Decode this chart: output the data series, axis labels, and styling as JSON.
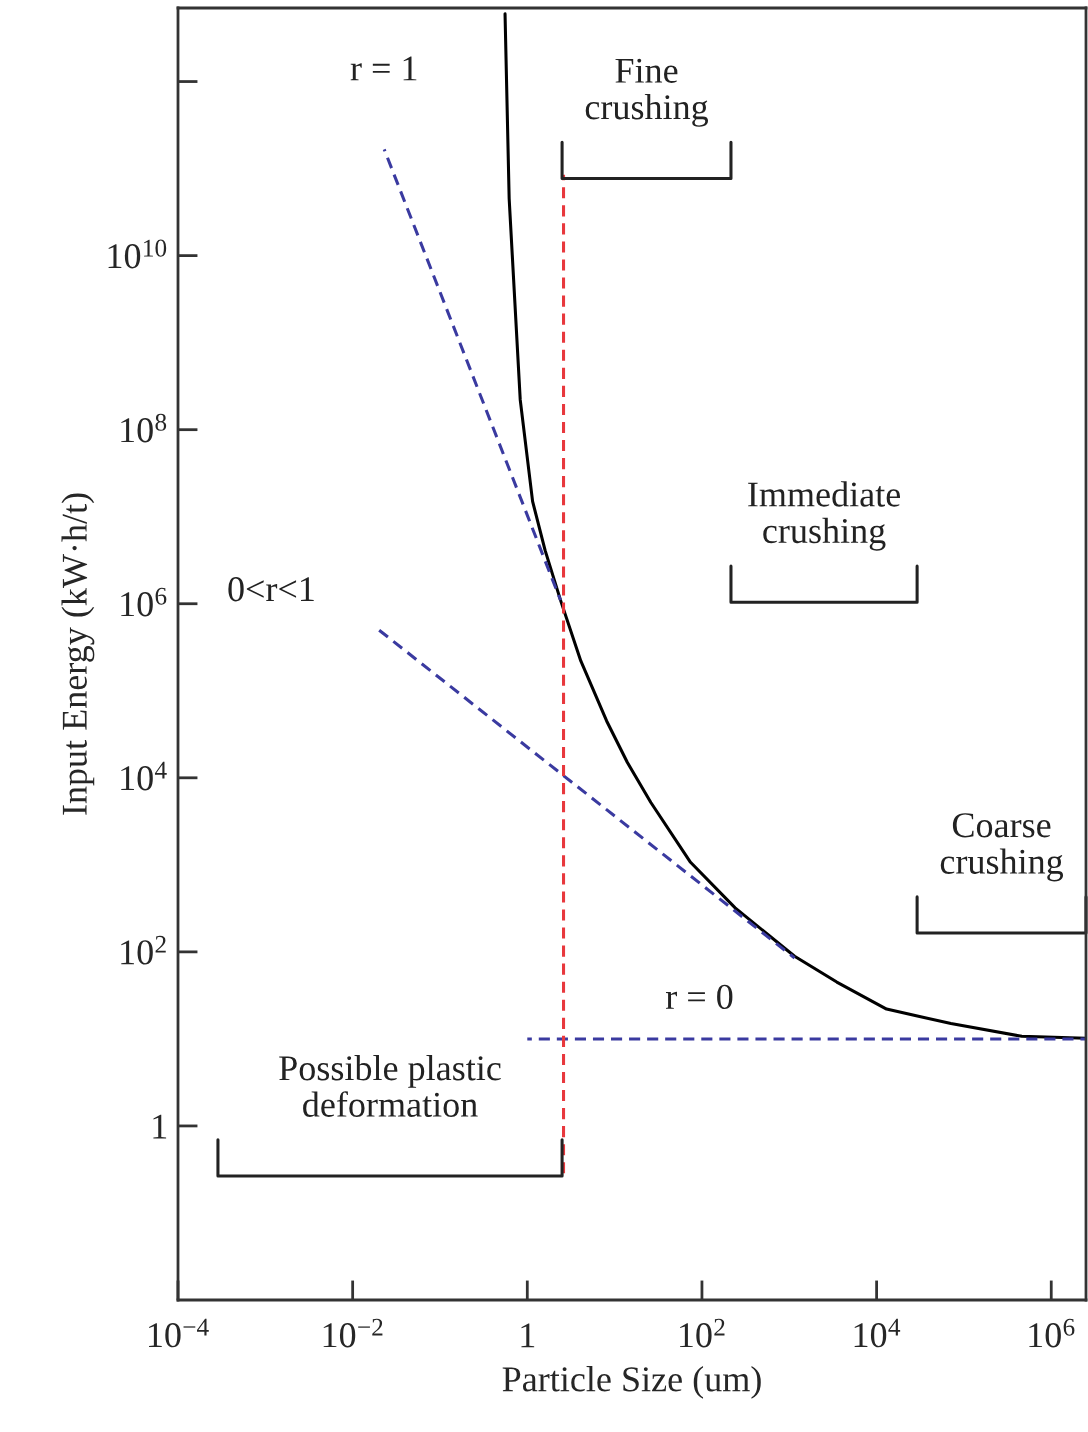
{
  "chart_data": {
    "type": "line",
    "xlabel": "Particle Size (um)",
    "ylabel": "Input Energy (kW·h/t)",
    "log": "xy",
    "grid": false,
    "legend": false,
    "xlim": [
      0.0001,
      2500000
    ],
    "ylim": [
      0.01,
      7000000000000
    ],
    "xticks": [
      {
        "value": 0.0001,
        "label": "10$^{−4}$"
      },
      {
        "value": 0.01,
        "label": "10$^{−2}$"
      },
      1,
      {
        "value": 100,
        "label": "10$^{2}$"
      },
      {
        "value": 10000,
        "label": "10$^{4}$"
      },
      {
        "value": 1000000,
        "label": "10$^{6}$"
      }
    ],
    "yticks": [
      1,
      {
        "value": 100,
        "label": "10$^{2}$"
      },
      {
        "value": 10000,
        "label": "10$^{4}$"
      },
      {
        "value": 1000000,
        "label": "10$^{6}$"
      },
      {
        "value": 100000000,
        "label": "10$^{8}$"
      },
      {
        "value": 10000000000,
        "label": "10$^{10}$"
      },
      {
        "value": 1000000000000,
        "label": null
      }
    ],
    "series": [
      {
        "color": "#000000",
        "line_style": "solid",
        "x": [
          0.556,
          0.62,
          0.83,
          1.15,
          1.6,
          2.4,
          4.1,
          8.1,
          14,
          26,
          74,
          240,
          1150,
          3500,
          13000,
          71000,
          460000,
          2500000
        ],
        "values": [
          6000000000000,
          45000000000,
          220000000,
          15000000,
          4100000,
          1100000,
          220000,
          45000,
          15000,
          5200,
          1070,
          320,
          89,
          45,
          22,
          15,
          10.7,
          10.2
        ]
      },
      {
        "name": "r = 1",
        "color": "#3a3aa0",
        "line_style": "dashed",
        "x": [
          0.023,
          2.4
        ],
        "values": [
          166000000000,
          1100000
        ]
      },
      {
        "name": "0<r<1",
        "color": "#3a3aa0",
        "line_style": "dashed",
        "x": [
          0.019,
          1150
        ],
        "values": [
          520000,
          85
        ]
      },
      {
        "name": "r = 0",
        "color": "#3a3aa0",
        "line_style": "dashed",
        "x": [
          1,
          2500000
        ],
        "values": [
          10,
          10
        ]
      },
      {
        "color": "#e8383d",
        "line_style": "dashed",
        "x": [
          2.6,
          2.6
        ],
        "values": [
          0.28,
          85000000000
        ]
      }
    ],
    "annotations": [
      "Fine\ncrushing",
      "Immediate\ncrushing",
      "Coarse\ncrushing",
      "Possible plastic\ndeformation"
    ]
  }
}
